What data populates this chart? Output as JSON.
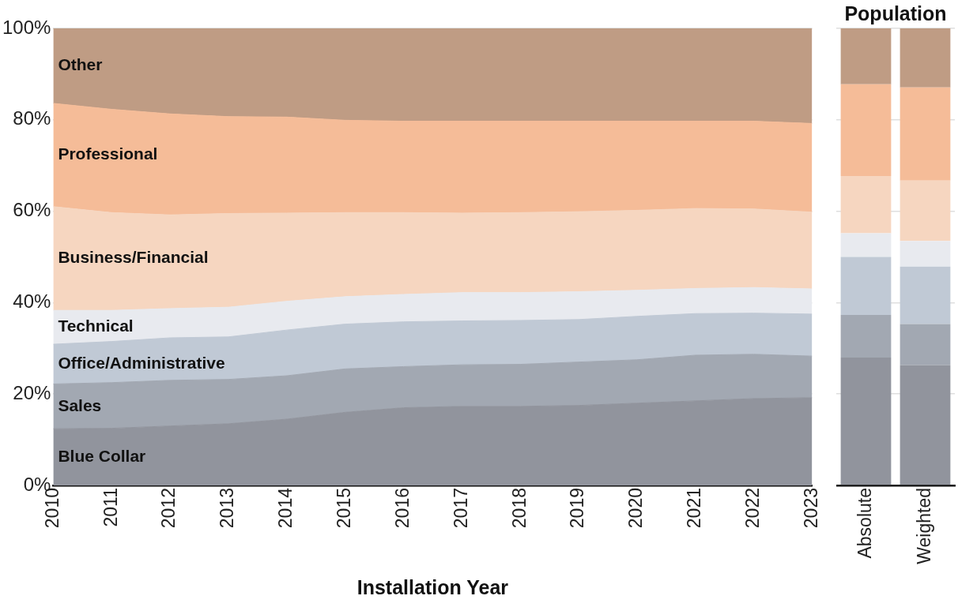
{
  "chart_data": [
    {
      "type": "area",
      "stacked": true,
      "xlabel": "Installation Year",
      "x": [
        2010,
        2011,
        2012,
        2013,
        2014,
        2015,
        2016,
        2017,
        2018,
        2019,
        2020,
        2021,
        2022,
        2023
      ],
      "xlim": [
        2010,
        2023
      ],
      "xticks": [
        2010,
        2011,
        2012,
        2013,
        2014,
        2015,
        2016,
        2017,
        2018,
        2019,
        2020,
        2021,
        2022,
        2023
      ],
      "ylim": [
        0,
        100
      ],
      "yticks": [
        {
          "value": 0,
          "label": "0%"
        },
        {
          "value": 20,
          "label": "20%"
        },
        {
          "value": 40,
          "label": "40%"
        },
        {
          "value": 60,
          "label": "60%"
        },
        {
          "value": 80,
          "label": "80%"
        },
        {
          "value": 100,
          "label": "100%"
        }
      ],
      "grid": "y",
      "series": [
        {
          "name": "Blue Collar",
          "color": "#91949d",
          "values": [
            12.4,
            12.5,
            13,
            13.5,
            14.5,
            16,
            17,
            17.3,
            17.3,
            17.5,
            18,
            18.5,
            19,
            19.2
          ]
        },
        {
          "name": "Sales",
          "color": "#a2a8b2",
          "values": [
            9.8,
            10,
            10,
            9.7,
            9.5,
            9.5,
            9,
            9.1,
            9.2,
            9.5,
            9.5,
            10,
            9.7,
            9.1
          ]
        },
        {
          "name": "Office/Administrative",
          "color": "#c0c9d5",
          "values": [
            8.7,
            9,
            9.3,
            9.3,
            10,
            9.8,
            9.8,
            9.6,
            9.6,
            9.3,
            9.5,
            9.1,
            9,
            9.2
          ]
        },
        {
          "name": "Technical",
          "color": "#e8eaef",
          "values": [
            7.4,
            6.8,
            6.4,
            6.5,
            6.3,
            6,
            6,
            6.2,
            6.1,
            6.1,
            5.7,
            5.5,
            5.6,
            5.5
          ]
        },
        {
          "name": "Business/Financial",
          "color": "#f6d6c0",
          "values": [
            22.7,
            21.4,
            20.5,
            20.5,
            19.3,
            18.4,
            17.9,
            17.4,
            17.5,
            17.5,
            17.5,
            17.5,
            17.2,
            16.8
          ]
        },
        {
          "name": "Professional",
          "color": "#f5bc98",
          "values": [
            22.6,
            22.6,
            22.1,
            21.2,
            21,
            20.2,
            20,
            20.1,
            20,
            19.8,
            19.5,
            19.1,
            19.2,
            19.4
          ]
        },
        {
          "name": "Other",
          "color": "#bf9c84",
          "values": [
            16.4,
            17.7,
            18.7,
            19.3,
            19.4,
            20.1,
            20.3,
            20.3,
            20.3,
            20.3,
            20.3,
            20.3,
            20.3,
            20.8
          ]
        }
      ]
    },
    {
      "type": "bar",
      "stacked": true,
      "title": "Population",
      "categories": [
        "Absolute",
        "Weighted"
      ],
      "ylim": [
        0,
        100
      ],
      "yticks": [
        0,
        20,
        40,
        60,
        80,
        100
      ],
      "grid": "y",
      "tick_labels": "x",
      "series": [
        {
          "color": "#91949d",
          "values": [
            28.0,
            26.3
          ]
        },
        {
          "color": "#a2a8b2",
          "values": [
            9.3,
            9.0
          ]
        },
        {
          "color": "#c0c9d5",
          "values": [
            12.7,
            12.6
          ]
        },
        {
          "color": "#e8eaef",
          "values": [
            5.2,
            5.6
          ]
        },
        {
          "color": "#f6d6c0",
          "values": [
            12.5,
            13.2
          ]
        },
        {
          "color": "#f5bc98",
          "values": [
            20.1,
            20.4
          ]
        },
        {
          "color": "#bf9c84",
          "values": [
            12.2,
            12.9
          ]
        }
      ]
    }
  ]
}
